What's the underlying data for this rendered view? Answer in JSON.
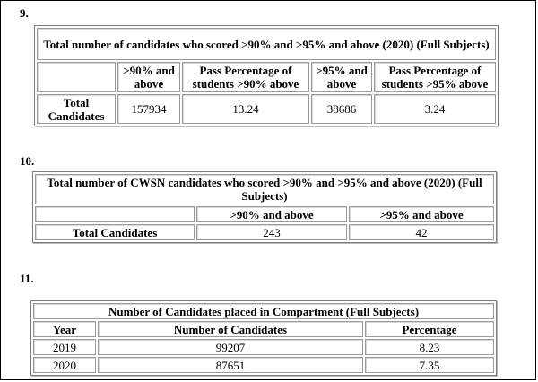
{
  "section9": {
    "number": "9.",
    "title": "Total number of candidates who scored >90% and >95% and above (2020) (Full Subjects)",
    "headers": [
      ">90% and above",
      "Pass Percentage of students >90% above",
      ">95% and above",
      "Pass Percentage of students >95% above"
    ],
    "row_label": "Total Candidates",
    "values": [
      "157934",
      "13.24",
      "38686",
      "3.24"
    ]
  },
  "section10": {
    "number": "10.",
    "title": "Total number of CWSN candidates who scored >90% and >95% and above (2020) (Full Subjects)",
    "headers": [
      ">90% and above",
      ">95% and above"
    ],
    "row_label": "Total Candidates",
    "values": [
      "243",
      "42"
    ]
  },
  "section11": {
    "number": "11.",
    "title": "Number of Candidates placed in Compartment (Full Subjects)",
    "headers": [
      "Year",
      "Number of Candidates",
      "Percentage"
    ],
    "rows": [
      {
        "year": "2019",
        "count": "99207",
        "percent": "8.23"
      },
      {
        "year": "2020",
        "count": "87651",
        "percent": "7.35"
      }
    ]
  }
}
